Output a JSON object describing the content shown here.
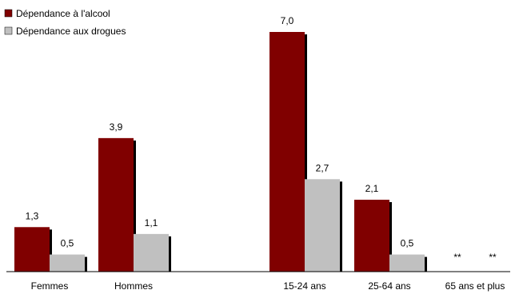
{
  "chart_data": {
    "type": "bar",
    "title": "",
    "xlabel": "",
    "ylabel": "",
    "ylim": [
      0,
      7.4
    ],
    "grid": false,
    "legend_position": "top-left",
    "categories": [
      "Femmes",
      "Hommes",
      "",
      "15-24 ans",
      "25-64 ans",
      "65 ans et plus"
    ],
    "series": [
      {
        "name": "Dépendance à l'alcool",
        "color": "#800000",
        "values": [
          1.3,
          3.9,
          null,
          7.0,
          2.1,
          null
        ],
        "labels": [
          "1,3",
          "3,9",
          "",
          "7,0",
          "2,1",
          "**"
        ]
      },
      {
        "name": "Dépendance aux drogues",
        "color": "#c0c0c0",
        "values": [
          0.5,
          1.1,
          null,
          2.7,
          0.5,
          null
        ],
        "labels": [
          "0,5",
          "1,1",
          "",
          "2,7",
          "0,5",
          "**"
        ]
      }
    ]
  }
}
